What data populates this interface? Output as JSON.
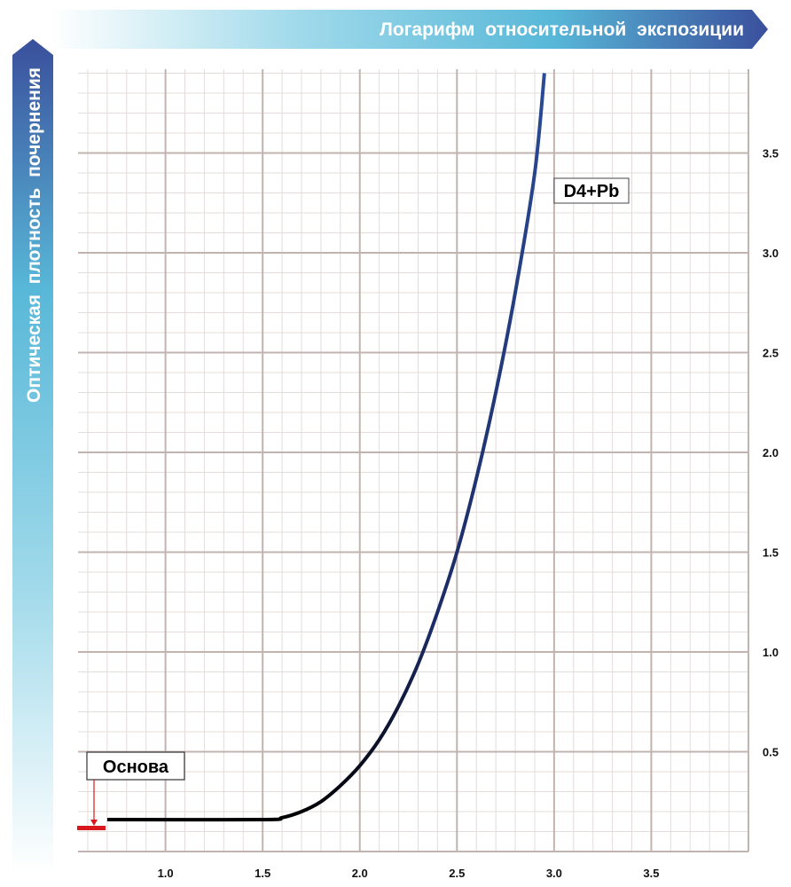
{
  "chart_data": {
    "type": "line",
    "xlabel": "Логарифм относительной экспозиции",
    "ylabel": "Оптическая плотность почернения",
    "xlim": [
      0.55,
      4.0
    ],
    "ylim": [
      0.0,
      3.92
    ],
    "x_ticks": [
      {
        "value": 1.0,
        "label": "1.0"
      },
      {
        "value": 1.5,
        "label": "1.5"
      },
      {
        "value": 2.0,
        "label": "2.0"
      },
      {
        "value": 2.5,
        "label": "2.5"
      },
      {
        "value": 3.0,
        "label": "3.0"
      },
      {
        "value": 3.5,
        "label": "3.5"
      }
    ],
    "y_ticks": [
      {
        "value": 0.5,
        "label": "0.5"
      },
      {
        "value": 1.0,
        "label": "1.0"
      },
      {
        "value": 1.5,
        "label": "1.5"
      },
      {
        "value": 2.0,
        "label": "2.0"
      },
      {
        "value": 2.5,
        "label": "2.5"
      },
      {
        "value": 3.0,
        "label": "3.0"
      },
      {
        "value": 3.5,
        "label": "3.5"
      }
    ],
    "grid": true,
    "series": [
      {
        "name": "D4+Pb",
        "x": [
          0.7,
          1.5,
          1.6,
          1.7,
          1.8,
          1.9,
          2.0,
          2.1,
          2.2,
          2.3,
          2.4,
          2.5,
          2.6,
          2.7,
          2.8,
          2.9,
          2.95
        ],
        "y": [
          0.16,
          0.16,
          0.17,
          0.2,
          0.25,
          0.33,
          0.43,
          0.56,
          0.73,
          0.94,
          1.2,
          1.5,
          1.87,
          2.3,
          2.8,
          3.4,
          3.9
        ]
      }
    ],
    "annotations": [
      {
        "text": "Основа",
        "x": 0.62,
        "y": 0.1
      }
    ]
  },
  "colors": {
    "curve": "#253f85",
    "curve_toe": "#000000",
    "base_marker": "#d8181c",
    "grid_major": "#c1b4b0",
    "grid_minor": "#e3dcda",
    "banner_dark": "#3a4f9c",
    "banner_light": "#ffffff"
  }
}
